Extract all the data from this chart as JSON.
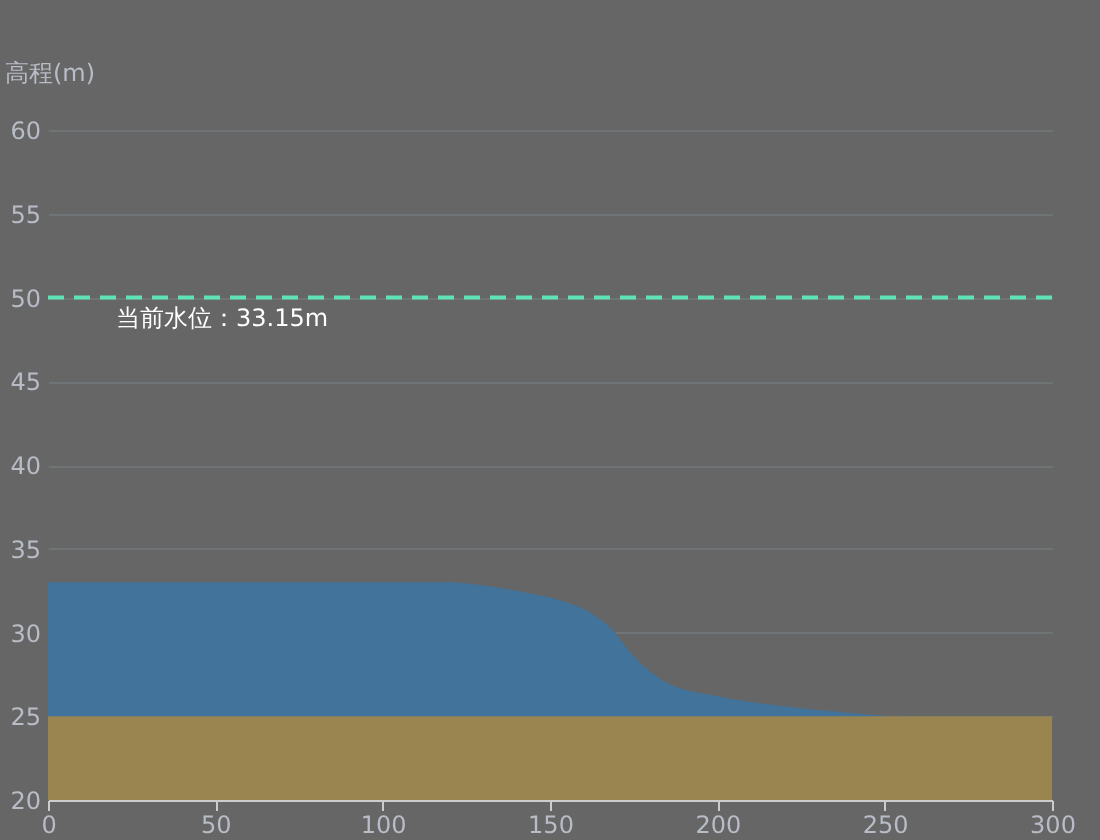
{
  "chart_data": {
    "type": "area",
    "ylabel": "高程(m)",
    "series": [
      {
        "color": "#41739b",
        "x": [
          0,
          60,
          120,
          130,
          145,
          155,
          162,
          168,
          175,
          185,
          200,
          220,
          240,
          255,
          300
        ],
        "values": [
          33,
          33,
          33,
          32.8,
          32.3,
          31.8,
          31.2,
          30.3,
          28.6,
          27,
          26.2,
          25.6,
          25.2,
          25,
          25
        ]
      },
      {
        "color": "#9a844f",
        "x": [
          0,
          300
        ],
        "values": [
          25,
          25
        ]
      }
    ],
    "xlim": [
      0,
      300
    ],
    "xticks": [
      0,
      50,
      100,
      150,
      200,
      250,
      300
    ],
    "ylim": [
      20,
      60
    ],
    "yticks": [
      20,
      25,
      30,
      35,
      40,
      45,
      50,
      55,
      60
    ],
    "grid": "y",
    "ref_lines": [
      {
        "axis": "y",
        "value": 50,
        "label": "当前水位：33.15m",
        "color": "#5fe3b5",
        "line_style": "dashed"
      }
    ]
  }
}
